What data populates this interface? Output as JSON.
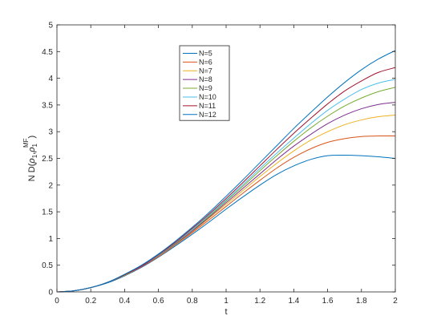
{
  "chart_data": {
    "type": "line",
    "xlabel": "t",
    "ylabel": {
      "prefix": "N D(",
      "rho": "ρ",
      "sub1": "1",
      "sep": ",",
      "sup": "MF",
      "suffix": ")"
    },
    "xlim": [
      0,
      2
    ],
    "ylim": [
      0,
      5
    ],
    "xticks": [
      0,
      0.2,
      0.4,
      0.6,
      0.8,
      1,
      1.2,
      1.4,
      1.6,
      1.8,
      2
    ],
    "xtick_labels": [
      "0",
      "0.2",
      "0.4",
      "0.6",
      "0.8",
      "1",
      "1.2",
      "1.4",
      "1.6",
      "1.8",
      "2"
    ],
    "yticks": [
      0,
      0.5,
      1,
      1.5,
      2,
      2.5,
      3,
      3.5,
      4,
      4.5,
      5
    ],
    "ytick_labels": [
      "0",
      "0.5",
      "1",
      "1.5",
      "2",
      "2.5",
      "3",
      "3.5",
      "4",
      "4.5",
      "5"
    ],
    "grid": false,
    "legend_position": "top-center",
    "x": [
      0,
      0.1,
      0.2,
      0.3,
      0.4,
      0.5,
      0.6,
      0.7,
      0.8,
      0.9,
      1.0,
      1.1,
      1.2,
      1.3,
      1.4,
      1.5,
      1.6,
      1.7,
      1.8,
      1.9,
      2.0
    ],
    "series": [
      {
        "name": "N=5",
        "color": "#0072BD",
        "values": [
          0,
          0.02,
          0.08,
          0.17,
          0.3,
          0.46,
          0.65,
          0.86,
          1.08,
          1.31,
          1.55,
          1.78,
          2.0,
          2.2,
          2.36,
          2.48,
          2.55,
          2.56,
          2.55,
          2.53,
          2.5
        ]
      },
      {
        "name": "N=6",
        "color": "#D95319",
        "values": [
          0,
          0.02,
          0.08,
          0.18,
          0.31,
          0.47,
          0.66,
          0.88,
          1.11,
          1.35,
          1.6,
          1.85,
          2.09,
          2.32,
          2.52,
          2.68,
          2.8,
          2.87,
          2.91,
          2.92,
          2.92
        ]
      },
      {
        "name": "N=7",
        "color": "#EDB120",
        "values": [
          0,
          0.02,
          0.08,
          0.18,
          0.31,
          0.48,
          0.67,
          0.89,
          1.13,
          1.38,
          1.64,
          1.9,
          2.16,
          2.41,
          2.64,
          2.84,
          3.0,
          3.13,
          3.22,
          3.28,
          3.31
        ]
      },
      {
        "name": "N=8",
        "color": "#7E2F8E",
        "values": [
          0,
          0.02,
          0.08,
          0.18,
          0.32,
          0.48,
          0.68,
          0.9,
          1.14,
          1.4,
          1.67,
          1.94,
          2.21,
          2.48,
          2.73,
          2.95,
          3.15,
          3.31,
          3.43,
          3.51,
          3.55
        ]
      },
      {
        "name": "N=9",
        "color": "#77AC30",
        "values": [
          0,
          0.02,
          0.08,
          0.18,
          0.32,
          0.49,
          0.69,
          0.91,
          1.16,
          1.42,
          1.7,
          1.98,
          2.27,
          2.55,
          2.82,
          3.07,
          3.29,
          3.48,
          3.63,
          3.75,
          3.83
        ]
      },
      {
        "name": "N=10",
        "color": "#4DBEEE",
        "values": [
          0,
          0.02,
          0.08,
          0.18,
          0.32,
          0.49,
          0.69,
          0.92,
          1.17,
          1.44,
          1.72,
          2.01,
          2.31,
          2.6,
          2.88,
          3.15,
          3.4,
          3.61,
          3.79,
          3.91,
          3.98
        ]
      },
      {
        "name": "N=11",
        "color": "#A2142F",
        "values": [
          0,
          0.02,
          0.08,
          0.18,
          0.32,
          0.49,
          0.7,
          0.93,
          1.19,
          1.46,
          1.75,
          2.05,
          2.36,
          2.67,
          2.97,
          3.25,
          3.52,
          3.76,
          3.95,
          4.11,
          4.2
        ]
      },
      {
        "name": "N=12",
        "color": "#0072BD",
        "values": [
          0,
          0.02,
          0.08,
          0.18,
          0.33,
          0.5,
          0.71,
          0.95,
          1.21,
          1.49,
          1.79,
          2.1,
          2.42,
          2.74,
          3.06,
          3.36,
          3.65,
          3.92,
          4.16,
          4.36,
          4.52
        ]
      }
    ]
  }
}
